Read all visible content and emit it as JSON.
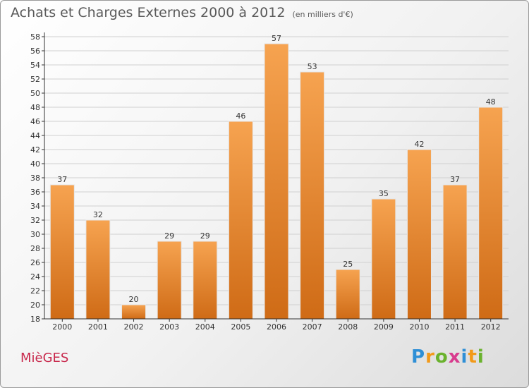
{
  "header": {
    "title": "Achats et Charges Externes 2000 à 2012",
    "unit": "(en milliers d'€)"
  },
  "footer": {
    "commune": "MièGES",
    "brand_letters": [
      "P",
      "r",
      "o",
      "x",
      "i",
      "t",
      "i"
    ]
  },
  "colors": {
    "bar_light": "#f6a350",
    "bar_dark": "#cf6b16",
    "grid": "#d0d0d0",
    "axis": "#333333",
    "text": "#333333"
  },
  "chart_data": {
    "type": "bar",
    "title": "Achats et Charges Externes 2000 à 2012",
    "subtitle": "(en milliers d'€)",
    "xlabel": "",
    "ylabel": "",
    "categories": [
      "2000",
      "2001",
      "2002",
      "2003",
      "2004",
      "2005",
      "2006",
      "2007",
      "2008",
      "2009",
      "2010",
      "2011",
      "2012"
    ],
    "values": [
      37,
      32,
      20,
      29,
      29,
      46,
      57,
      53,
      25,
      35,
      42,
      37,
      48
    ],
    "ylim": [
      18,
      58
    ],
    "yticks": [
      18,
      20,
      22,
      24,
      26,
      28,
      30,
      32,
      34,
      36,
      38,
      40,
      42,
      44,
      46,
      48,
      50,
      52,
      54,
      56,
      58
    ],
    "grid": true,
    "data_labels": true
  }
}
